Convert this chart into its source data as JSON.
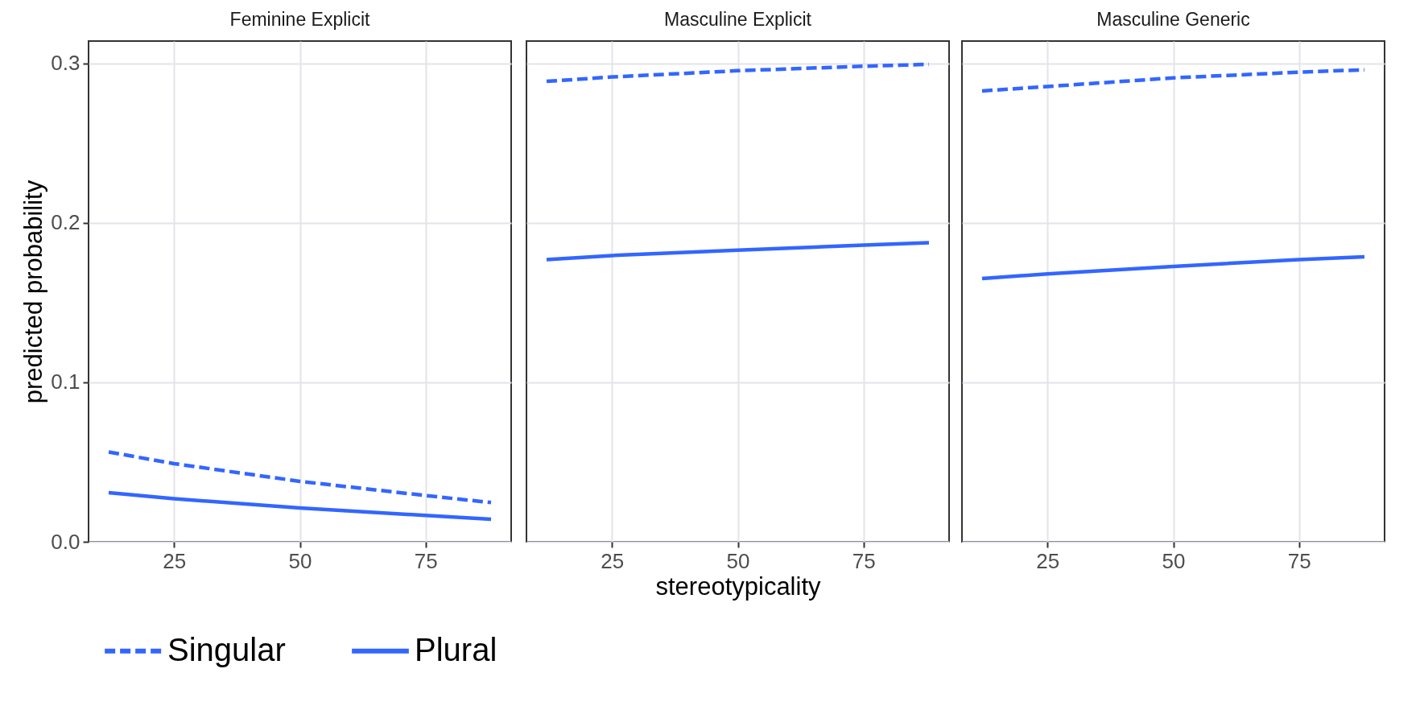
{
  "chart_data": [
    {
      "type": "line",
      "title": "Feminine Explicit",
      "ylabel": "predicted probability",
      "xlim": [
        8,
        92
      ],
      "xticks": [
        25,
        50,
        75
      ],
      "ylim": [
        0,
        0.314
      ],
      "yticks": [
        {
          "value": 0,
          "label": "0.0"
        },
        0.1,
        0.2,
        0.3
      ],
      "grid": true,
      "legend": "bottom",
      "x": [
        12,
        25,
        50,
        75,
        88
      ],
      "series": [
        {
          "name": "Singular",
          "color": "#3366ff",
          "line_style": "dashed",
          "values": [
            0.0563,
            0.049,
            0.0379,
            0.029,
            0.0246
          ]
        },
        {
          "name": "Plural",
          "color": "#3366ff",
          "line_style": "solid",
          "values": [
            0.0308,
            0.027,
            0.0212,
            0.0165,
            0.0141
          ]
        }
      ]
    },
    {
      "type": "line",
      "title": "Masculine Explicit",
      "xlabel": "stereotypicality",
      "xlim": [
        8,
        92
      ],
      "xticks": [
        25,
        50,
        75
      ],
      "ylim": [
        0,
        0.314
      ],
      "yticks": [
        0,
        0.1,
        0.2,
        0.3
      ],
      "grid": true,
      "tick_labels": "x",
      "x": [
        12,
        25,
        50,
        75,
        88
      ],
      "series": [
        {
          "color": "#3366ff",
          "line_style": "dashed",
          "values": [
            0.2887,
            0.2915,
            0.2954,
            0.2982,
            0.2994
          ]
        },
        {
          "color": "#3366ff",
          "line_style": "solid",
          "values": [
            0.177,
            0.1795,
            0.1829,
            0.186,
            0.1875
          ]
        }
      ]
    },
    {
      "type": "line",
      "title": "Masculine Generic",
      "xlim": [
        8,
        92
      ],
      "xticks": [
        25,
        50,
        75
      ],
      "ylim": [
        0,
        0.314
      ],
      "yticks": [
        0,
        0.1,
        0.2,
        0.3
      ],
      "grid": true,
      "tick_labels": "x",
      "x": [
        12,
        25,
        50,
        75,
        88
      ],
      "series": [
        {
          "color": "#3366ff",
          "line_style": "dashed",
          "values": [
            0.2827,
            0.2855,
            0.2909,
            0.2945,
            0.296
          ]
        },
        {
          "color": "#3366ff",
          "line_style": "solid",
          "values": [
            0.1651,
            0.168,
            0.1727,
            0.177,
            0.1787
          ]
        }
      ]
    }
  ]
}
